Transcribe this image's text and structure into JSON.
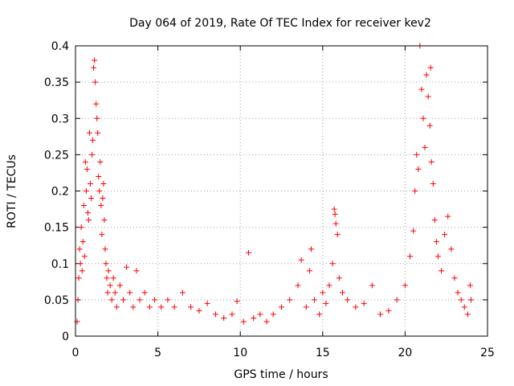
{
  "chart_data": {
    "type": "scatter",
    "title": "Day 064 of 2019, Rate Of TEC Index for receiver kev2",
    "xlabel": "GPS time / hours",
    "ylabel": "ROTI / TECUs",
    "xlim": [
      0,
      25
    ],
    "ylim": [
      0,
      0.4
    ],
    "xticks": [
      "0",
      "5",
      "10",
      "15",
      "20",
      "25"
    ],
    "yticks": [
      "0",
      "0.05",
      "0.1",
      "0.15",
      "0.2",
      "0.25",
      "0.3",
      "0.35",
      "0.4"
    ],
    "grid": true,
    "marker": "+",
    "color": "#ff0000",
    "series": [
      {
        "points": [
          [
            0.1,
            0.02
          ],
          [
            0.15,
            0.05
          ],
          [
            0.2,
            0.08
          ],
          [
            0.25,
            0.12
          ],
          [
            0.3,
            0.1
          ],
          [
            0.35,
            0.15
          ],
          [
            0.4,
            0.09
          ],
          [
            0.45,
            0.13
          ],
          [
            0.5,
            0.18
          ],
          [
            0.55,
            0.11
          ],
          [
            0.6,
            0.24
          ],
          [
            0.65,
            0.2
          ],
          [
            0.7,
            0.23
          ],
          [
            0.75,
            0.17
          ],
          [
            0.8,
            0.16
          ],
          [
            0.85,
            0.28
          ],
          [
            0.9,
            0.21
          ],
          [
            0.95,
            0.19
          ],
          [
            1.0,
            0.25
          ],
          [
            1.05,
            0.27
          ],
          [
            1.1,
            0.37
          ],
          [
            1.15,
            0.38
          ],
          [
            1.2,
            0.35
          ],
          [
            1.25,
            0.32
          ],
          [
            1.3,
            0.3
          ],
          [
            1.35,
            0.28
          ],
          [
            1.4,
            0.22
          ],
          [
            1.45,
            0.2
          ],
          [
            1.5,
            0.24
          ],
          [
            1.55,
            0.18
          ],
          [
            1.6,
            0.14
          ],
          [
            1.65,
            0.19
          ],
          [
            1.7,
            0.21
          ],
          [
            1.75,
            0.16
          ],
          [
            1.8,
            0.12
          ],
          [
            1.85,
            0.1
          ],
          [
            1.9,
            0.08
          ],
          [
            1.95,
            0.06
          ],
          [
            2.0,
            0.09
          ],
          [
            2.1,
            0.07
          ],
          [
            2.2,
            0.05
          ],
          [
            2.3,
            0.08
          ],
          [
            2.4,
            0.06
          ],
          [
            2.5,
            0.04
          ],
          [
            2.7,
            0.07
          ],
          [
            2.9,
            0.05
          ],
          [
            3.1,
            0.095
          ],
          [
            3.3,
            0.06
          ],
          [
            3.5,
            0.04
          ],
          [
            3.7,
            0.09
          ],
          [
            3.9,
            0.05
          ],
          [
            4.2,
            0.06
          ],
          [
            4.5,
            0.04
          ],
          [
            4.8,
            0.05
          ],
          [
            5.2,
            0.04
          ],
          [
            5.6,
            0.05
          ],
          [
            6.0,
            0.04
          ],
          [
            6.5,
            0.06
          ],
          [
            7.0,
            0.04
          ],
          [
            7.5,
            0.035
          ],
          [
            8.0,
            0.045
          ],
          [
            8.5,
            0.03
          ],
          [
            9.0,
            0.025
          ],
          [
            9.5,
            0.03
          ],
          [
            9.8,
            0.048
          ],
          [
            10.2,
            0.02
          ],
          [
            10.5,
            0.115
          ],
          [
            10.8,
            0.025
          ],
          [
            11.2,
            0.03
          ],
          [
            11.6,
            0.02
          ],
          [
            12.0,
            0.03
          ],
          [
            12.5,
            0.04
          ],
          [
            13.0,
            0.05
          ],
          [
            13.5,
            0.07
          ],
          [
            13.7,
            0.105
          ],
          [
            14.0,
            0.04
          ],
          [
            14.2,
            0.09
          ],
          [
            14.3,
            0.12
          ],
          [
            14.5,
            0.05
          ],
          [
            14.8,
            0.03
          ],
          [
            15.0,
            0.06
          ],
          [
            15.2,
            0.045
          ],
          [
            15.4,
            0.07
          ],
          [
            15.6,
            0.1
          ],
          [
            15.7,
            0.175
          ],
          [
            15.75,
            0.168
          ],
          [
            15.8,
            0.155
          ],
          [
            15.9,
            0.14
          ],
          [
            16.0,
            0.08
          ],
          [
            16.2,
            0.06
          ],
          [
            16.5,
            0.05
          ],
          [
            17.0,
            0.04
          ],
          [
            17.5,
            0.045
          ],
          [
            18.0,
            0.07
          ],
          [
            18.5,
            0.03
          ],
          [
            19.0,
            0.035
          ],
          [
            19.5,
            0.05
          ],
          [
            20.0,
            0.07
          ],
          [
            20.3,
            0.11
          ],
          [
            20.5,
            0.145
          ],
          [
            20.6,
            0.2
          ],
          [
            20.7,
            0.25
          ],
          [
            20.8,
            0.23
          ],
          [
            20.9,
            0.4
          ],
          [
            21.0,
            0.34
          ],
          [
            21.1,
            0.3
          ],
          [
            21.2,
            0.26
          ],
          [
            21.3,
            0.36
          ],
          [
            21.4,
            0.33
          ],
          [
            21.5,
            0.29
          ],
          [
            21.55,
            0.37
          ],
          [
            21.6,
            0.24
          ],
          [
            21.7,
            0.21
          ],
          [
            21.8,
            0.16
          ],
          [
            21.9,
            0.13
          ],
          [
            22.0,
            0.11
          ],
          [
            22.2,
            0.09
          ],
          [
            22.4,
            0.14
          ],
          [
            22.6,
            0.165
          ],
          [
            22.8,
            0.12
          ],
          [
            23.0,
            0.08
          ],
          [
            23.2,
            0.06
          ],
          [
            23.4,
            0.05
          ],
          [
            23.6,
            0.04
          ],
          [
            23.8,
            0.03
          ],
          [
            23.95,
            0.07
          ],
          [
            24.0,
            0.05
          ]
        ]
      }
    ]
  }
}
